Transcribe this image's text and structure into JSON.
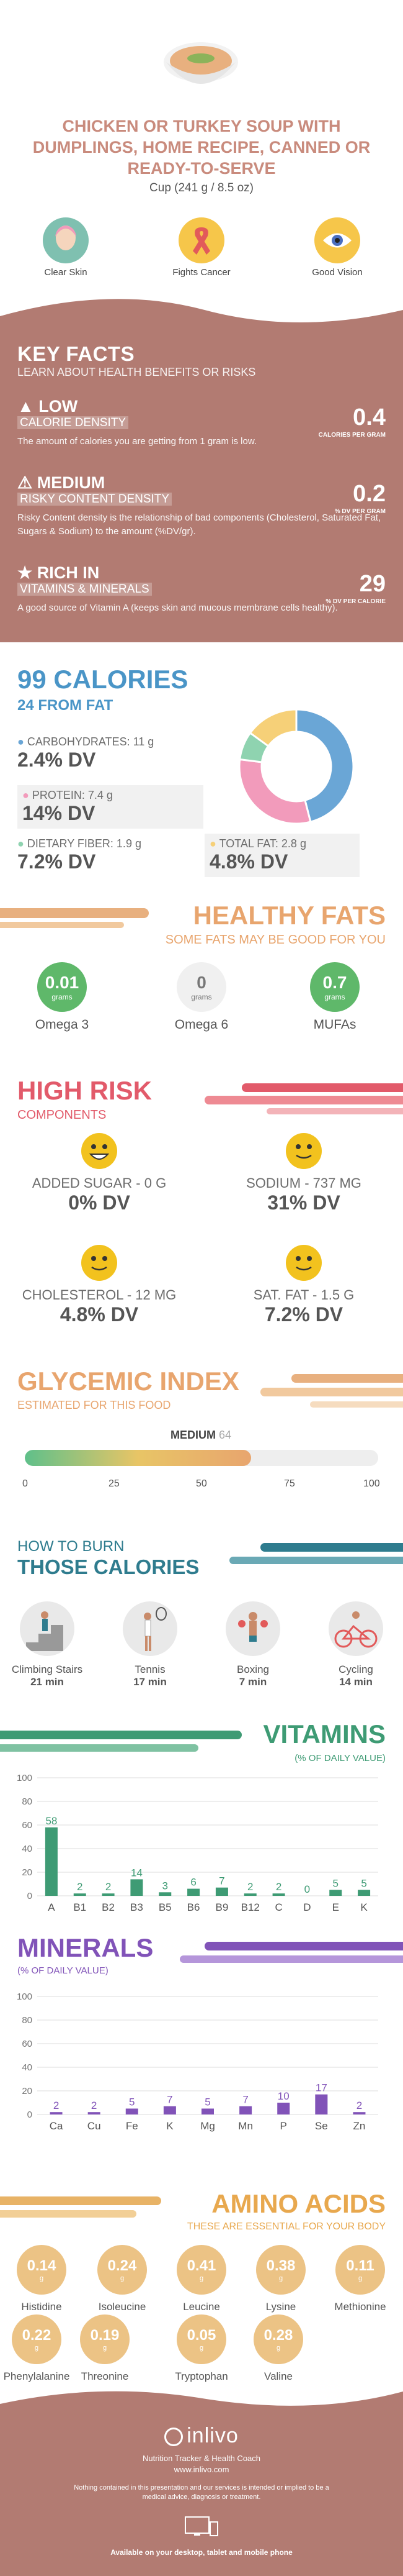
{
  "header": {
    "title": "CHICKEN OR TURKEY SOUP WITH DUMPLINGS, HOME RECIPE, CANNED OR READY-TO-SERVE",
    "serving": "Cup (241 g / 8.5 oz)",
    "benefits": [
      {
        "label": "Clear Skin",
        "icon": "face-icon",
        "color": "#7fc0b0"
      },
      {
        "label": "Fights Cancer",
        "icon": "ribbon-icon",
        "color": "#f6c64a"
      },
      {
        "label": "Good Vision",
        "icon": "eye-icon",
        "color": "#f6c64a"
      }
    ]
  },
  "key_facts": {
    "title": "KEY FACTS",
    "subtitle": "LEARN ABOUT HEALTH BENEFITS OR RISKS",
    "rows": [
      {
        "level": "LOW",
        "name": "CALORIE DENSITY",
        "value": "0.4",
        "unit": "CALORIES PER GRAM",
        "desc": "The amount of calories you are getting from 1 gram is low."
      },
      {
        "level": "MEDIUM",
        "name": "RISKY CONTENT DENSITY",
        "value": "0.2",
        "unit": "% DV PER GRAM",
        "desc": "Risky Content density is the relationship of bad components (Cholesterol, Saturated Fat, Sugars & Sodium) to the amount (%DV/gr)."
      },
      {
        "level": "RICH IN",
        "name": "VITAMINS & MINERALS",
        "value": "29",
        "unit": "% DV PER CALORIE",
        "desc": "A good source of Vitamin A (keeps skin and mucous membrane cells healthy)."
      }
    ]
  },
  "calories": {
    "title": "99 CALORIES",
    "subtitle": "24 FROM FAT",
    "items": [
      {
        "label": "CARBOHYDRATES: 11 g",
        "dv": "2.4% DV",
        "color": "#6aa6d6"
      },
      {
        "label": "PROTEIN: 7.4 g",
        "dv": "14% DV",
        "color": "#f29bbb"
      },
      {
        "label": "DIETARY FIBER: 1.9 g",
        "dv": "7.2% DV",
        "color": "#8fd3b0"
      },
      {
        "label": "TOTAL FAT: 2.8 g",
        "dv": "4.8% DV",
        "color": "#f6d078"
      }
    ]
  },
  "chart_data": {
    "type": "pie",
    "categories": [
      "Carbohydrates",
      "Protein",
      "Dietary fiber",
      "Total fat"
    ],
    "values": [
      46,
      31,
      8,
      15
    ],
    "colors": [
      "#6aa6d6",
      "#f29bbb",
      "#8fd3b0",
      "#f6d078"
    ]
  },
  "fats": {
    "title": "HEALTHY FATS",
    "subtitle": "SOME FATS MAY BE GOOD FOR YOU",
    "items": [
      {
        "value": "0.01",
        "unit": "grams",
        "label": "Omega 3",
        "color": "#5fb86a"
      },
      {
        "value": "0",
        "unit": "grams",
        "label": "Omega 6",
        "color": "#f0f0f0"
      },
      {
        "value": "0.7",
        "unit": "grams",
        "label": "MUFAs",
        "color": "#5fb86a"
      }
    ]
  },
  "risk": {
    "title": "HIGH RISK",
    "subtitle": "COMPONENTS",
    "items": [
      {
        "label": "ADDED SUGAR - 0 g",
        "dv": "0% DV"
      },
      {
        "label": "SODIUM - 737 mg",
        "dv": "31% DV"
      },
      {
        "label": "CHOLESTEROL - 12 mg",
        "dv": "4.8% DV"
      },
      {
        "label": "SAT. FAT - 1.5 g",
        "dv": "7.2% DV"
      }
    ]
  },
  "glycemic": {
    "title": "GLYCEMIC INDEX",
    "subtitle": "ESTIMATED FOR THIS FOOD",
    "level": "MEDIUM",
    "value": "64",
    "ticks": [
      "0",
      "25",
      "50",
      "75",
      "100"
    ],
    "fill": 0.64
  },
  "burn": {
    "title1": "HOW TO BURN",
    "title2": "THOSE CALORIES",
    "items": [
      {
        "name": "Climbing Stairs",
        "time": "21 min",
        "icon": "stairs-icon"
      },
      {
        "name": "Tennis",
        "time": "17 min",
        "icon": "tennis-icon"
      },
      {
        "name": "Boxing",
        "time": "7 min",
        "icon": "boxing-icon"
      },
      {
        "name": "Cycling",
        "time": "14 min",
        "icon": "cycling-icon"
      }
    ]
  },
  "vitamins": {
    "title": "VITAMINS",
    "subtitle": "(% OF DAILY VALUE)",
    "yticks": [
      "100",
      "80",
      "60",
      "40",
      "20",
      "0"
    ],
    "categories": [
      "A",
      "B1",
      "B2",
      "B3",
      "B5",
      "B6",
      "B9",
      "B12",
      "C",
      "D",
      "E",
      "K"
    ],
    "values": [
      58,
      2,
      2,
      14,
      3,
      6,
      7,
      2,
      2,
      0,
      5,
      5
    ],
    "labels": [
      "58",
      "2",
      "2",
      "14",
      "3",
      "6",
      "7",
      "2",
      "2",
      "0",
      "5",
      "5"
    ]
  },
  "minerals": {
    "title": "MINERALS",
    "subtitle": "(% OF DAILY VALUE)",
    "yticks": [
      "100",
      "80",
      "60",
      "40",
      "20",
      "0"
    ],
    "categories": [
      "Ca",
      "Cu",
      "Fe",
      "K",
      "Mg",
      "Mn",
      "P",
      "Se",
      "Zn"
    ],
    "values": [
      2,
      2,
      5,
      7,
      5,
      7,
      10,
      17,
      2
    ],
    "labels": [
      "2",
      "2",
      "5",
      "7",
      "5",
      "7",
      "10",
      "17",
      "2"
    ]
  },
  "amino": {
    "title": "AMINO ACIDS",
    "subtitle": "THESE ARE ESSENTIAL FOR YOUR BODY",
    "items": [
      {
        "value": "0.14",
        "unit": "g",
        "name": "Histidine"
      },
      {
        "value": "0.24",
        "unit": "g",
        "name": "Isoleucine"
      },
      {
        "value": "0.41",
        "unit": "g",
        "name": "Leucine"
      },
      {
        "value": "0.38",
        "unit": "g",
        "name": "Lysine"
      },
      {
        "value": "0.11",
        "unit": "g",
        "name": "Methionine"
      },
      {
        "value": "0.22",
        "unit": "g",
        "name": "Phenylalanine"
      },
      {
        "value": "0.19",
        "unit": "g",
        "name": "Threonine"
      },
      {
        "value": "0.05",
        "unit": "g",
        "name": "Tryptophan"
      },
      {
        "value": "0.28",
        "unit": "g",
        "name": "Valine"
      }
    ]
  },
  "footer": {
    "brand": "inlivo",
    "tagline": "Nutrition Tracker & Health Coach",
    "url": "www.inlivo.com",
    "disclaimer": "Nothing contained in this presentation and our services is intended or implied to be a medical advice, diagnosis or treatment.",
    "available": "Available on your desktop, tablet and mobile phone"
  }
}
